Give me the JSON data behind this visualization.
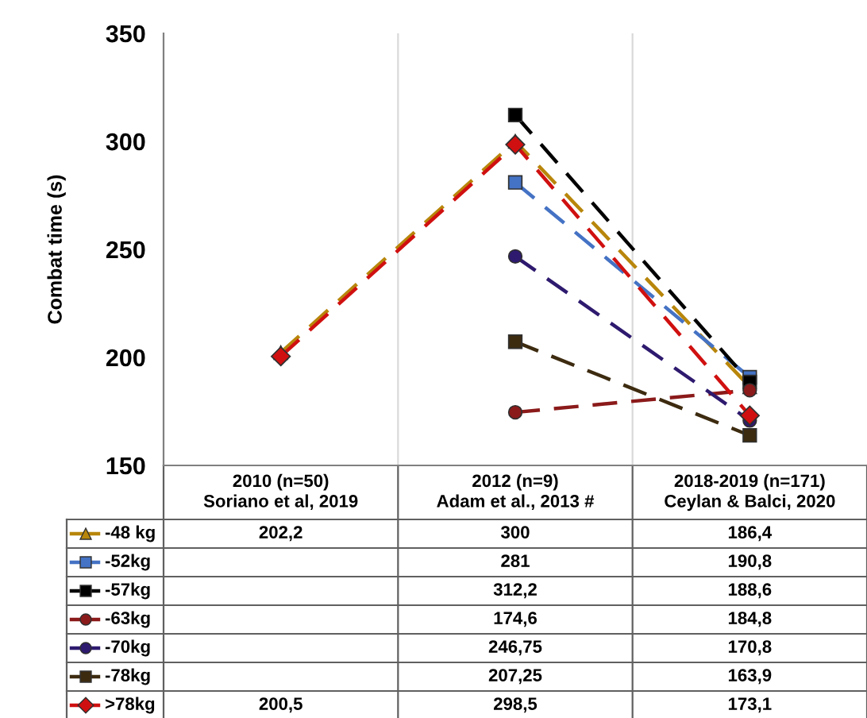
{
  "chart_data": {
    "type": "line",
    "ylabel": "Combat time (s)",
    "categories": [
      "2010 (n=50)\nSoriano et al, 2019",
      "2012 (n=9)\nAdam et al., 2013 #",
      "2018-2019 (n=171)\nCeylan & Balci, 2020"
    ],
    "ylim": [
      150,
      350
    ],
    "yticks": [
      150,
      200,
      250,
      300,
      350
    ],
    "grid": false,
    "legend": "bottom left",
    "series": [
      {
        "name": "-48 kg",
        "color": "#b8860b",
        "marker": "triangle",
        "line_style": "dashed",
        "values": [
          202.2,
          300,
          186.4
        ],
        "value_labels": [
          "202,2",
          "300",
          "186,4"
        ]
      },
      {
        "name": "-52kg",
        "color": "#4472c4",
        "marker": "square",
        "line_style": "dashed",
        "values": [
          null,
          281,
          190.8
        ],
        "value_labels": [
          null,
          "281",
          "190,8"
        ]
      },
      {
        "name": "-57kg",
        "color": "#000000",
        "marker": "square",
        "line_style": "dashed",
        "values": [
          null,
          312.2,
          188.6
        ],
        "value_labels": [
          null,
          "312,2",
          "188,6"
        ]
      },
      {
        "name": "-63kg",
        "color": "#8b1a1a",
        "marker": "circle",
        "line_style": "dashed",
        "values": [
          null,
          174.6,
          184.8
        ],
        "value_labels": [
          null,
          "174,6",
          "184,8"
        ]
      },
      {
        "name": "-70kg",
        "color": "#2e1a6e",
        "marker": "circle",
        "line_style": "dashed",
        "values": [
          null,
          246.75,
          170.8
        ],
        "value_labels": [
          null,
          "246,75",
          "170,8"
        ]
      },
      {
        "name": "-78kg",
        "color": "#3d2b10",
        "marker": "square",
        "line_style": "dashed",
        "values": [
          null,
          207.25,
          163.9
        ],
        "value_labels": [
          null,
          "207,25",
          "163,9"
        ]
      },
      {
        "name": ">78kg",
        "color": "#d01010",
        "marker": "diamond",
        "line_style": "dashed",
        "values": [
          200.5,
          298.5,
          173.1
        ],
        "value_labels": [
          "200,5",
          "298,5",
          "173,1"
        ]
      }
    ]
  }
}
